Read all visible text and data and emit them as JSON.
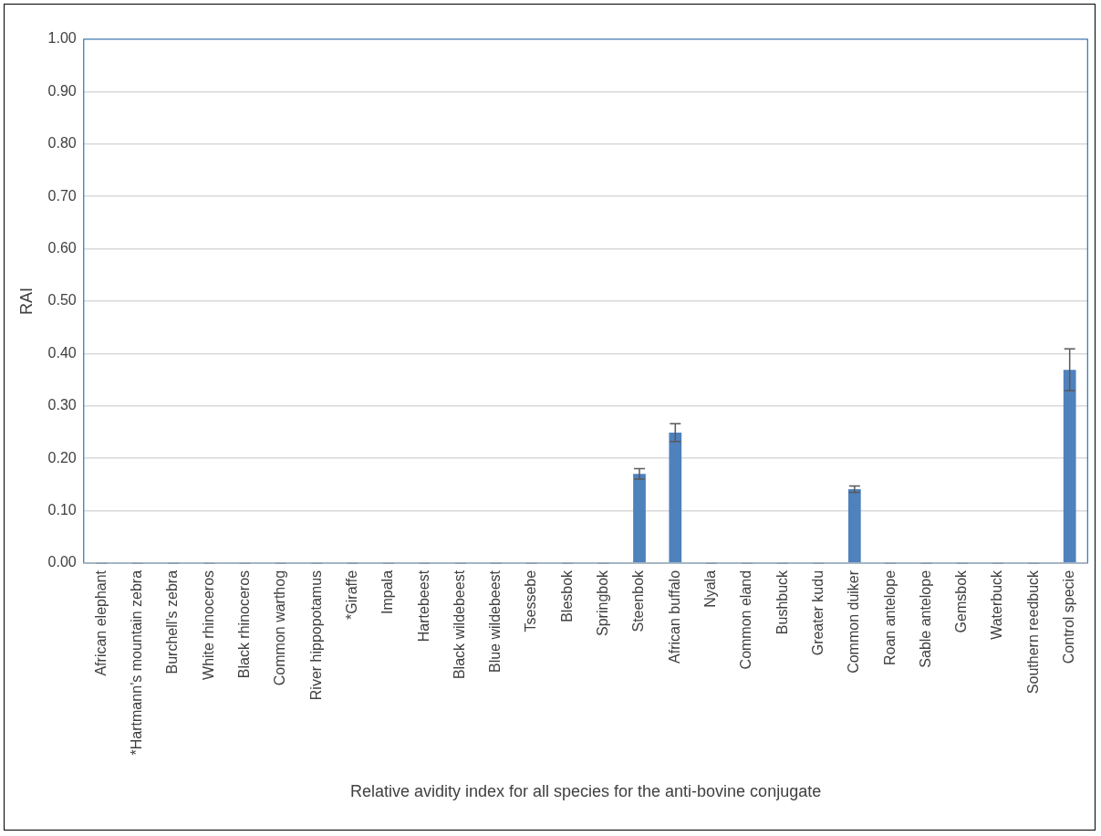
{
  "chart_data": {
    "type": "bar",
    "xlabel": "Relative avidity index for all species for the anti-bovine conjugate",
    "ylabel": "RAI",
    "categories": [
      "African elephant",
      "*Hartmann’s mountain zebra",
      "Burchell’s zebra",
      "White rhinoceros",
      "Black rhinoceros",
      "Common warthog",
      "River hippopotamus",
      "*Giraffe",
      "Impala",
      "Hartebeest",
      "Black wildebeest",
      "Blue wildebeest",
      "Tsessebe",
      "Blesbok",
      "Springbok",
      "Steenbok",
      "African buffalo",
      "Nyala",
      "Common eland",
      "Bushbuck",
      "Greater kudu",
      "Common duiker",
      "Roan antelope",
      "Sable antelope",
      "Gemsbok",
      "Waterbuck",
      "Southern reedbuck",
      "Control specie"
    ],
    "values": [
      0,
      0,
      0,
      0,
      0,
      0,
      0,
      0,
      0,
      0,
      0,
      0,
      0,
      0,
      0,
      0.17,
      0.249,
      0,
      0,
      0,
      0,
      0.141,
      0,
      0,
      0,
      0,
      0,
      0.369
    ],
    "errors": [
      0,
      0,
      0,
      0,
      0,
      0,
      0,
      0,
      0,
      0,
      0,
      0,
      0,
      0,
      0,
      0.01,
      0.017,
      0,
      0,
      0,
      0,
      0.006,
      0,
      0,
      0,
      0,
      0,
      0.04
    ],
    "color": "#4f81bd",
    "ylim": [
      0,
      1
    ],
    "yticks": [
      {
        "value": 0,
        "label": "0.00"
      },
      {
        "value": 0.1,
        "label": "0.10"
      },
      {
        "value": 0.2,
        "label": "0.20"
      },
      {
        "value": 0.3,
        "label": "0.30"
      },
      {
        "value": 0.4,
        "label": "0.40"
      },
      {
        "value": 0.5,
        "label": "0.50"
      },
      {
        "value": 0.6,
        "label": "0.60"
      },
      {
        "value": 0.7,
        "label": "0.70"
      },
      {
        "value": 0.8,
        "label": "0.80"
      },
      {
        "value": 0.9,
        "label": "0.90"
      },
      {
        "value": 1,
        "label": "1.00"
      }
    ],
    "grid": "y"
  }
}
